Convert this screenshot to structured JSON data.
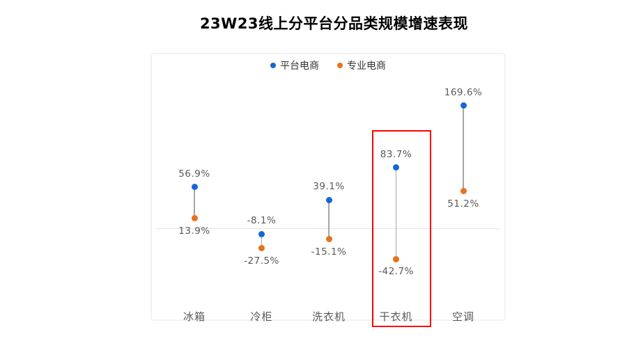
{
  "title": "23W23线上分平台分品类规模增速表现",
  "legend": [
    {
      "label": "平台电商",
      "color": "#1666d4"
    },
    {
      "label": "专业电商",
      "color": "#e8721c"
    }
  ],
  "colors": {
    "series1": "#1666d4",
    "series2": "#e8721c",
    "connector": "#a6a6a6",
    "zero_line": "#e2e2e2",
    "plot_border": "#f2f2f2",
    "label_text": "#595959",
    "highlight_box": "#ff0000"
  },
  "chart_data": {
    "type": "scatter",
    "subtype": "dumbbell-range",
    "title": "23W23线上分平台分品类规模增速表现",
    "categories": [
      "冰箱",
      "冷柜",
      "洗衣机",
      "干衣机",
      "空调"
    ],
    "series": [
      {
        "name": "平台电商",
        "color": "#1666d4",
        "values": [
          56.9,
          -8.1,
          39.1,
          83.7,
          169.6
        ],
        "labels": [
          "56.9%",
          "-8.1%",
          "39.1%",
          "83.7%",
          "169.6%"
        ]
      },
      {
        "name": "专业电商",
        "color": "#e8721c",
        "values": [
          13.9,
          -27.5,
          -15.1,
          -42.7,
          51.2
        ],
        "labels": [
          "13.9%",
          "-27.5%",
          "-15.1%",
          "-42.7%",
          "51.2%"
        ]
      }
    ],
    "value_format": "percent",
    "ylim": [
      -70,
      200
    ],
    "zero_line": true,
    "grid": "zero-line-only",
    "legend_position": "top-center",
    "highlight": {
      "category": "干衣机",
      "color": "#ff0000"
    }
  }
}
